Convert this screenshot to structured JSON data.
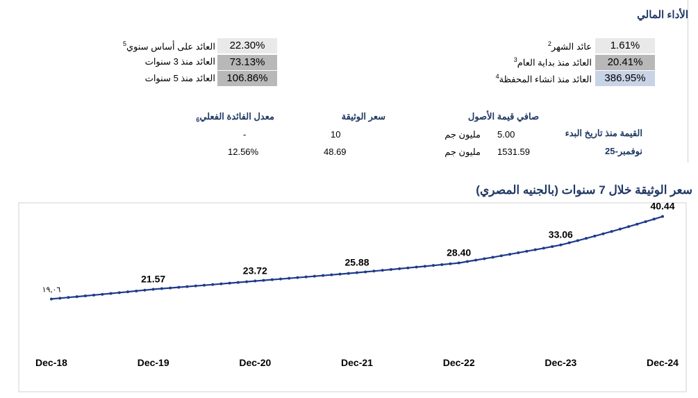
{
  "performance": {
    "title": "الأداء المالي",
    "right_col": [
      {
        "label": "عائد الشهر",
        "sup": "2",
        "value": "1.61%",
        "bg": "#e9e9e9"
      },
      {
        "label": "العائد منذ بداية العام",
        "sup": "3",
        "value": "20.41%",
        "bg": "#b8b8b8"
      },
      {
        "label": "العائد منذ انشاء المحفظة",
        "sup": "4",
        "value": "386.95%",
        "bg": "#c9d3e6"
      }
    ],
    "left_col": [
      {
        "label": "العائد على أساس سنوي",
        "sup": "5",
        "value": "22.30%",
        "bg": "#e9e9e9"
      },
      {
        "label": "العائد منذ 3 سنوات",
        "sup": "",
        "value": "73.13%",
        "bg": "#b8b8b8"
      },
      {
        "label": "العائد منذ 5 سنوات",
        "sup": "",
        "value": "106.86%",
        "bg": "#b8b8b8"
      }
    ]
  },
  "nav_table": {
    "headers": {
      "inception_value": "القيمة منذ تاريخ البدء",
      "net_assets": "صافي قيمة الأصول",
      "unit_price": "سعر الوثيقة",
      "actual_return": "معدل الفائدة الفعلي",
      "actual_return_sup": "6"
    },
    "row1": {
      "assets_unit": "مليون جم",
      "assets_value": "5.00",
      "unit_price": "10",
      "actual_return": "-"
    },
    "row2": {
      "date": "نوفمبر-25",
      "assets_unit": "مليون جم",
      "assets_value": "1531.59",
      "unit_price": "48.69",
      "actual_return": "12.56%"
    }
  },
  "chart_title": "سعر الوثيقة خلال 7 سنوات (بالجنيه المصري)",
  "chart_data": {
    "type": "line",
    "title": "سعر الوثيقة خلال 7 سنوات (بالجنيه المصري)",
    "x_labels": [
      "Dec-18",
      "Dec-19",
      "Dec-20",
      "Dec-21",
      "Dec-22",
      "Dec-23",
      "Dec-24"
    ],
    "points_per_year": 12,
    "anchors": [
      {
        "x": "Dec-18",
        "y": 19.06,
        "label": "١٩,٠٦"
      },
      {
        "x": "Dec-19",
        "y": 21.57,
        "label": "21.57"
      },
      {
        "x": "Dec-20",
        "y": 23.72,
        "label": "23.72"
      },
      {
        "x": "Dec-21",
        "y": 25.88,
        "label": "25.88"
      },
      {
        "x": "Dec-22",
        "y": 28.4,
        "label": "28.40"
      },
      {
        "x": "Dec-23",
        "y": 33.06,
        "label": "33.06"
      },
      {
        "x": "Dec-24",
        "y": 40.44,
        "label": "40.44"
      }
    ],
    "line_color": "#1f3a8a",
    "ylim": [
      15,
      42
    ],
    "grid": false,
    "legend": "none"
  }
}
